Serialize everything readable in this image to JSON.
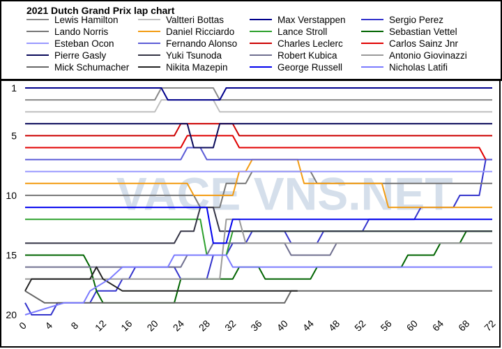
{
  "chart_data": {
    "type": "line",
    "title": "2021 Dutch Grand Prix lap chart",
    "xlim": [
      0,
      72
    ],
    "ylim": [
      20,
      1
    ],
    "x_ticks": [
      0,
      4,
      8,
      12,
      16,
      20,
      24,
      28,
      32,
      36,
      40,
      44,
      48,
      52,
      56,
      60,
      64,
      68,
      72
    ],
    "y_ticks": [
      1,
      5,
      10,
      15,
      20
    ],
    "y_inverted": true,
    "grid": false,
    "legend_location": "top",
    "watermark": "VACE VNS.NET",
    "series": [
      {
        "name": "Lewis Hamilton",
        "color": "#888888",
        "points": [
          [
            0,
            2
          ],
          [
            20,
            2
          ],
          [
            21,
            1
          ],
          [
            29,
            1
          ],
          [
            30,
            2
          ],
          [
            72,
            2
          ]
        ]
      },
      {
        "name": "Valtteri Bottas",
        "color": "#bfbfbf",
        "points": [
          [
            0,
            3
          ],
          [
            20,
            3
          ],
          [
            21,
            2
          ],
          [
            29,
            2
          ],
          [
            30,
            3
          ],
          [
            72,
            3
          ]
        ]
      },
      {
        "name": "Max Verstappen",
        "color": "#00008b",
        "points": [
          [
            0,
            1
          ],
          [
            21,
            1
          ],
          [
            22,
            2
          ],
          [
            30,
            2
          ],
          [
            31,
            1
          ],
          [
            72,
            1
          ]
        ]
      },
      {
        "name": "Sergio Perez",
        "color": "#3333cc",
        "points": [
          [
            0,
            19
          ],
          [
            1,
            20
          ],
          [
            4,
            20
          ],
          [
            5,
            19
          ],
          [
            10,
            19
          ],
          [
            11,
            18
          ],
          [
            14,
            18
          ],
          [
            15,
            17
          ],
          [
            16,
            17
          ],
          [
            17,
            16
          ],
          [
            23,
            16
          ],
          [
            24,
            17
          ],
          [
            28,
            17
          ],
          [
            29,
            15
          ],
          [
            31,
            15
          ],
          [
            32,
            14
          ],
          [
            34,
            14
          ],
          [
            35,
            13
          ],
          [
            40,
            13
          ],
          [
            41,
            14
          ],
          [
            45,
            14
          ],
          [
            46,
            13
          ],
          [
            52,
            13
          ],
          [
            53,
            12
          ],
          [
            60,
            12
          ],
          [
            61,
            11
          ],
          [
            66,
            11
          ],
          [
            67,
            10
          ],
          [
            70,
            10
          ],
          [
            71,
            7
          ],
          [
            72,
            7
          ]
        ]
      },
      {
        "name": "Lando Norris",
        "color": "#777777",
        "points": [
          [
            0,
            10
          ],
          [
            26,
            10
          ],
          [
            27,
            11
          ],
          [
            30,
            11
          ],
          [
            31,
            9
          ],
          [
            34,
            9
          ],
          [
            35,
            8
          ],
          [
            44,
            8
          ],
          [
            45,
            9
          ],
          [
            72,
            9
          ]
        ]
      },
      {
        "name": "Daniel Ricciardo",
        "color": "#f39c12",
        "points": [
          [
            0,
            9
          ],
          [
            25,
            9
          ],
          [
            26,
            10
          ],
          [
            32,
            10
          ],
          [
            33,
            8
          ],
          [
            34,
            8
          ],
          [
            35,
            7
          ],
          [
            42,
            7
          ],
          [
            43,
            9
          ],
          [
            55,
            9
          ],
          [
            56,
            11
          ],
          [
            72,
            11
          ]
        ]
      },
      {
        "name": "Lance Stroll",
        "color": "#2ca02c",
        "points": [
          [
            0,
            12
          ],
          [
            27,
            12
          ],
          [
            28,
            15
          ],
          [
            31,
            15
          ],
          [
            32,
            13
          ],
          [
            72,
            13
          ]
        ]
      },
      {
        "name": "Sebastian Vettel",
        "color": "#006400",
        "points": [
          [
            0,
            15
          ],
          [
            9,
            15
          ],
          [
            10,
            16
          ],
          [
            11,
            18
          ],
          [
            12,
            19
          ],
          [
            23,
            19
          ],
          [
            24,
            17
          ],
          [
            32,
            17
          ],
          [
            33,
            16
          ],
          [
            36,
            16
          ],
          [
            37,
            17
          ],
          [
            44,
            17
          ],
          [
            45,
            16
          ],
          [
            58,
            16
          ],
          [
            59,
            15
          ],
          [
            63,
            15
          ],
          [
            64,
            14
          ],
          [
            67,
            14
          ],
          [
            68,
            13
          ],
          [
            72,
            13
          ]
        ]
      },
      {
        "name": "Esteban Ocon",
        "color": "#9999ff",
        "points": [
          [
            0,
            8
          ],
          [
            72,
            8
          ]
        ]
      },
      {
        "name": "Fernando Alonso",
        "color": "#5b5bd6",
        "points": [
          [
            0,
            7
          ],
          [
            24,
            7
          ],
          [
            25,
            6
          ],
          [
            27,
            6
          ],
          [
            28,
            7
          ],
          [
            72,
            7
          ]
        ]
      },
      {
        "name": "Charles Leclerc",
        "color": "#cc0000",
        "points": [
          [
            0,
            5
          ],
          [
            23,
            5
          ],
          [
            24,
            4
          ],
          [
            32,
            4
          ],
          [
            33,
            5
          ],
          [
            72,
            5
          ]
        ]
      },
      {
        "name": "Carlos Sainz Jnr",
        "color": "#e00000",
        "points": [
          [
            0,
            6
          ],
          [
            24,
            6
          ],
          [
            25,
            5
          ],
          [
            32,
            5
          ],
          [
            33,
            6
          ],
          [
            70,
            6
          ],
          [
            71,
            7
          ]
        ]
      },
      {
        "name": "Pierre Gasly",
        "color": "#0a0a5a",
        "points": [
          [
            0,
            4
          ],
          [
            25,
            4
          ],
          [
            26,
            6
          ],
          [
            29,
            6
          ],
          [
            30,
            4
          ],
          [
            72,
            4
          ]
        ]
      },
      {
        "name": "Yuki Tsunoda",
        "color": "#333344",
        "points": [
          [
            0,
            14
          ],
          [
            23,
            14
          ],
          [
            24,
            13
          ],
          [
            26,
            13
          ],
          [
            27,
            11
          ],
          [
            29,
            11
          ],
          [
            30,
            13
          ],
          [
            72,
            13
          ]
        ]
      },
      {
        "name": "Robert Kubica",
        "color": "#6f6f8f",
        "points": [
          [
            0,
            16
          ],
          [
            24,
            16
          ],
          [
            25,
            15
          ],
          [
            28,
            15
          ],
          [
            29,
            14
          ],
          [
            40,
            14
          ],
          [
            41,
            15
          ],
          [
            47,
            15
          ],
          [
            48,
            14
          ],
          [
            72,
            14
          ]
        ]
      },
      {
        "name": "Antonio Giovinazzi",
        "color": "#999999",
        "points": [
          [
            0,
            17
          ],
          [
            30,
            17
          ],
          [
            31,
            12
          ],
          [
            33,
            12
          ],
          [
            34,
            14
          ],
          [
            72,
            14
          ]
        ]
      },
      {
        "name": "Mick Schumacher",
        "color": "#666666",
        "points": [
          [
            0,
            18
          ],
          [
            3,
            19
          ],
          [
            40,
            19
          ],
          [
            41,
            18
          ],
          [
            72,
            18
          ]
        ]
      },
      {
        "name": "Nikita Mazepin",
        "color": "#222222",
        "points": [
          [
            0,
            18
          ],
          [
            1,
            17
          ],
          [
            10,
            17
          ],
          [
            11,
            16
          ],
          [
            12,
            17
          ],
          [
            15,
            18
          ],
          [
            42,
            18
          ]
        ]
      },
      {
        "name": "George Russell",
        "color": "#0000ee",
        "points": [
          [
            0,
            11
          ],
          [
            28,
            11
          ],
          [
            29,
            14
          ],
          [
            31,
            14
          ],
          [
            32,
            12
          ],
          [
            72,
            12
          ]
        ]
      },
      {
        "name": "Nicholas Latifi",
        "color": "#7b7bff",
        "points": [
          [
            0,
            20
          ],
          [
            6,
            19
          ],
          [
            9,
            19
          ],
          [
            10,
            18
          ],
          [
            13,
            17
          ],
          [
            15,
            16
          ],
          [
            22,
            16
          ],
          [
            23,
            15
          ],
          [
            31,
            15
          ],
          [
            32,
            16
          ],
          [
            72,
            16
          ]
        ]
      }
    ]
  }
}
